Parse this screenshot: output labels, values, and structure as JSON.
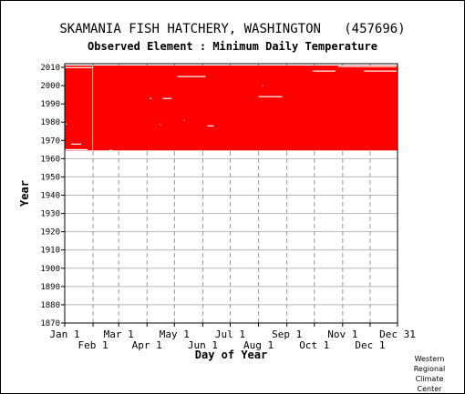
{
  "chart_data": {
    "type": "heatmap",
    "title": "SKAMANIA FISH HATCHERY, WASHINGTON   (457696)",
    "subtitle": "Observed Element : Minimum Daily Temperature",
    "xlabel": "Day of Year",
    "ylabel": "Year",
    "x_range": [
      1,
      365
    ],
    "ylim": [
      1870,
      2012
    ],
    "y_ticks": [
      2010,
      2000,
      1990,
      1980,
      1970,
      1960,
      1950,
      1940,
      1930,
      1920,
      1910,
      1900,
      1890,
      1880,
      1870
    ],
    "x_ticks_row1": [
      {
        "label": "Jan 1",
        "day": 1
      },
      {
        "label": "Mar 1",
        "day": 60
      },
      {
        "label": "May 1",
        "day": 121
      },
      {
        "label": "Jul 1",
        "day": 182
      },
      {
        "label": "Sep 1",
        "day": 244
      },
      {
        "label": "Nov 1",
        "day": 305
      },
      {
        "label": "Dec 31",
        "day": 365
      }
    ],
    "x_ticks_row2": [
      {
        "label": "Feb 1",
        "day": 32
      },
      {
        "label": "Apr 1",
        "day": 91
      },
      {
        "label": "Jun 1",
        "day": 152
      },
      {
        "label": "Aug 1",
        "day": 213
      },
      {
        "label": "Oct 1",
        "day": 274
      },
      {
        "label": "Dec 1",
        "day": 335
      }
    ],
    "grid": true,
    "observed_color": "#ff0000",
    "observed_range": {
      "day_start": 1,
      "day_end": 365,
      "year_start": 1964.5,
      "year_end": 2011
    },
    "missing_segments": [
      {
        "day_start": 1,
        "day_end": 31,
        "year": 2010,
        "height": 0.4
      },
      {
        "day_start": 31,
        "day_end": 32,
        "year_start": 1964.5,
        "year_end": 2011
      },
      {
        "day_start": 8,
        "day_end": 19,
        "year": 1968,
        "height": 0.5
      },
      {
        "day_start": 1,
        "day_end": 26,
        "year": 1965,
        "height": 0.5
      },
      {
        "day_start": 50,
        "day_end": 53,
        "year": 1964.7,
        "height": 0.3
      },
      {
        "day_start": 124,
        "day_end": 155,
        "year": 2005,
        "height": 0.5
      },
      {
        "day_start": 94,
        "day_end": 96,
        "year": 1993,
        "height": 0.5
      },
      {
        "day_start": 108,
        "day_end": 118,
        "year": 1993,
        "height": 0.5
      },
      {
        "day_start": 157,
        "day_end": 164,
        "year": 1978,
        "height": 0.5
      },
      {
        "day_start": 213,
        "day_end": 239,
        "year": 1994,
        "height": 0.5
      },
      {
        "day_start": 272,
        "day_end": 297,
        "year": 2008,
        "height": 0.5
      },
      {
        "day_start": 328,
        "day_end": 364,
        "year": 2008,
        "height": 0.5
      },
      {
        "day_start": 300,
        "day_end": 364,
        "year": 2010.6,
        "height": 0.3
      },
      {
        "day_start": 105,
        "day_end": 106,
        "year": 1979,
        "height": 0.5
      },
      {
        "day_start": 131,
        "day_end": 132,
        "year": 1981,
        "height": 0.5
      },
      {
        "day_start": 2,
        "day_end": 3,
        "year": 1979,
        "height": 0.5
      },
      {
        "day_start": 217,
        "day_end": 218,
        "year": 2000,
        "height": 0.5
      }
    ]
  },
  "credit": {
    "line1": "Western",
    "line2": "Regional",
    "line3": "Climate",
    "line4": "Center"
  }
}
